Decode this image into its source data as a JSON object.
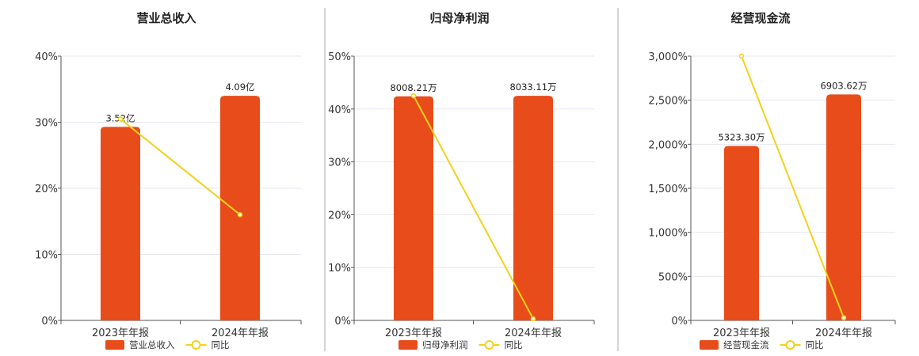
{
  "colors": {
    "bar": "#e84c1a",
    "line": "#f2d21a",
    "grid": "#e6e6f0",
    "axis": "#555555",
    "divider": "#aaaaaa"
  },
  "chart_data": [
    {
      "type": "bar",
      "title": "营业总收入",
      "categories": [
        "2023年年报",
        "2024年年报"
      ],
      "series": [
        {
          "name": "营业总收入",
          "type": "bar",
          "values": [
            29.3,
            34.0
          ],
          "labels": [
            "3.52亿",
            "4.09亿"
          ]
        },
        {
          "name": "同比",
          "type": "line",
          "values": [
            30.5,
            16.0
          ]
        }
      ],
      "yticks": [
        "0%",
        "10%",
        "20%",
        "30%",
        "40%"
      ],
      "ylim": [
        0,
        40
      ]
    },
    {
      "type": "bar",
      "title": "归母净利润",
      "categories": [
        "2023年年报",
        "2024年年报"
      ],
      "series": [
        {
          "name": "归母净利润",
          "type": "bar",
          "values": [
            42.4,
            42.5
          ],
          "labels": [
            "8008.21万",
            "8033.11万"
          ]
        },
        {
          "name": "同比",
          "type": "line",
          "values": [
            42.5,
            0.3
          ]
        }
      ],
      "yticks": [
        "0%",
        "10%",
        "20%",
        "30%",
        "40%",
        "50%"
      ],
      "ylim": [
        0,
        50
      ]
    },
    {
      "type": "bar",
      "title": "经营现金流",
      "categories": [
        "2023年年报",
        "2024年年报"
      ],
      "series": [
        {
          "name": "经营现金流",
          "type": "bar",
          "values": [
            1980,
            2565
          ],
          "labels": [
            "5323.30万",
            "6903.62万"
          ]
        },
        {
          "name": "同比",
          "type": "line",
          "values": [
            3000,
            30
          ]
        }
      ],
      "yticks": [
        "0%",
        "500%",
        "1,000%",
        "1,500%",
        "2,000%",
        "2,500%",
        "3,000%"
      ],
      "ylim": [
        0,
        3000
      ]
    }
  ]
}
